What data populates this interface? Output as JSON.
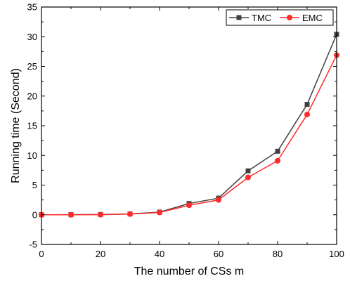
{
  "chart_data": {
    "type": "line",
    "title": "",
    "xlabel": "The number of CSs m",
    "ylabel": "Running time (Second)",
    "xlim": [
      0,
      100
    ],
    "ylim": [
      -5,
      35
    ],
    "x_ticks": [
      0,
      20,
      40,
      60,
      80,
      100
    ],
    "y_ticks": [
      -5,
      0,
      5,
      10,
      15,
      20,
      25,
      30,
      35
    ],
    "grid": false,
    "legend_position": "top-right",
    "x": [
      0,
      10,
      20,
      30,
      40,
      50,
      60,
      70,
      80,
      90,
      100
    ],
    "series": [
      {
        "name": "TMC",
        "color": "#404040",
        "marker": "square",
        "values": [
          0.0,
          0.02,
          0.05,
          0.15,
          0.45,
          1.9,
          2.8,
          7.4,
          10.7,
          18.6,
          30.4
        ]
      },
      {
        "name": "EMC",
        "color": "#ff2a2a",
        "marker": "circle",
        "values": [
          0.0,
          0.0,
          0.02,
          0.12,
          0.38,
          1.6,
          2.5,
          6.3,
          9.1,
          16.9,
          26.9
        ]
      }
    ]
  }
}
